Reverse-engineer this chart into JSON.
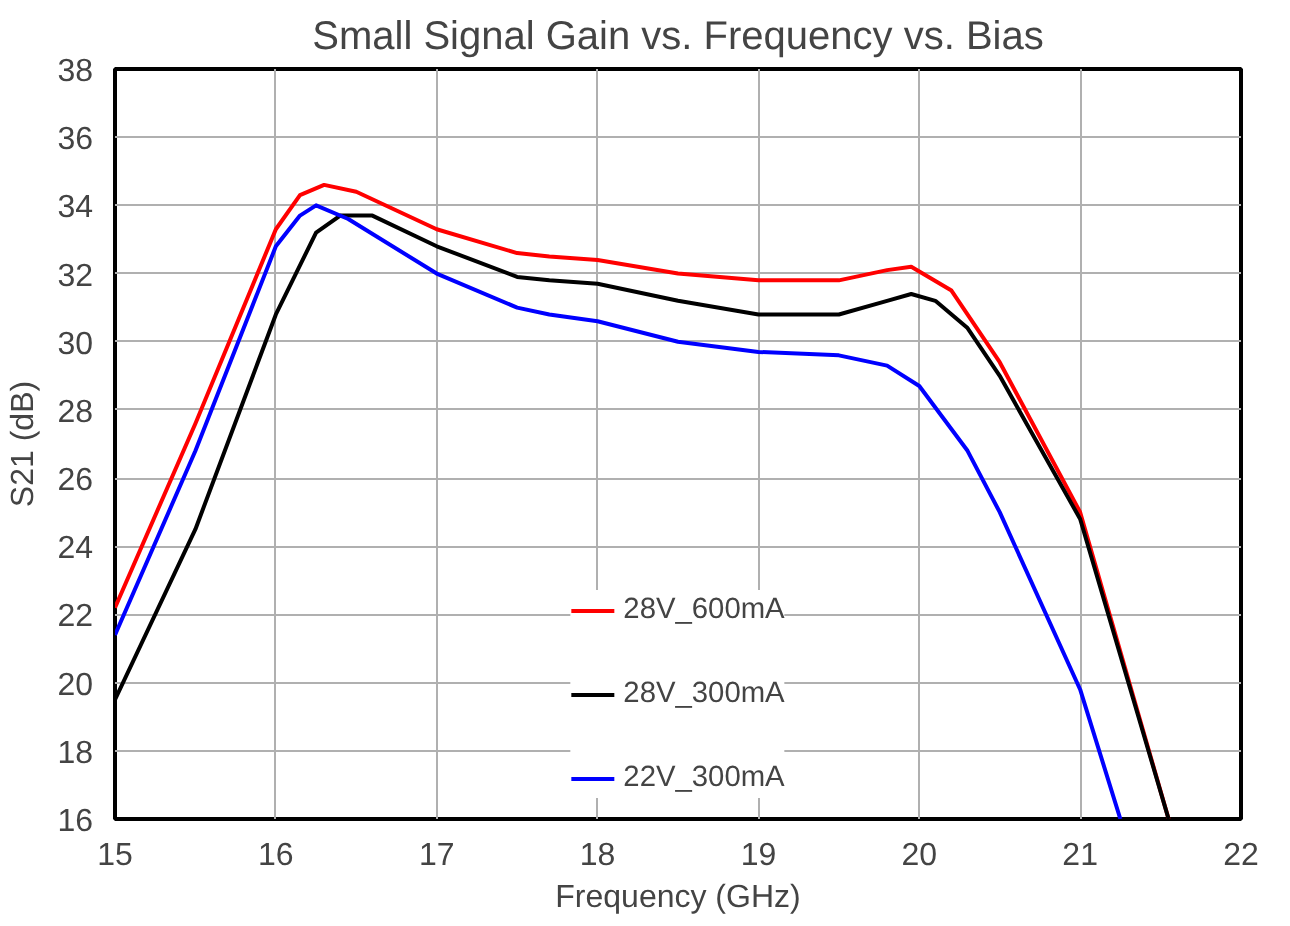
{
  "chart_data": {
    "type": "line",
    "title": "Small Signal Gain vs. Frequency vs. Bias",
    "xlabel": "Frequency (GHz)",
    "ylabel": "S21 (dB)",
    "xlim": [
      15,
      22
    ],
    "xticks": [
      15,
      16,
      17,
      18,
      19,
      20,
      21,
      22
    ],
    "ylim": [
      16,
      38
    ],
    "yticks": [
      16,
      18,
      20,
      22,
      24,
      26,
      28,
      30,
      32,
      34,
      36,
      38
    ],
    "grid": true,
    "legend": "bottom",
    "marker": "none",
    "line_style": "solid",
    "series": [
      {
        "name": "28V_600mA",
        "color": "#ff0000",
        "x": [
          15,
          15.5,
          16,
          16.15,
          16.3,
          16.5,
          17,
          17.5,
          17.7,
          18,
          18.5,
          19,
          19.5,
          19.8,
          19.95,
          20.2,
          20.5,
          21,
          21.55
        ],
        "values": [
          22.2,
          27.6,
          33.3,
          34.3,
          34.6,
          34.4,
          33.3,
          32.6,
          32.5,
          32.4,
          32.0,
          31.8,
          31.8,
          32.1,
          32.2,
          31.5,
          29.4,
          25.0,
          16
        ]
      },
      {
        "name": "28V_300mA",
        "color": "#000000",
        "x": [
          15,
          15.5,
          16,
          16.25,
          16.4,
          16.6,
          17,
          17.5,
          17.7,
          18,
          18.5,
          19,
          19.5,
          19.8,
          19.95,
          20.1,
          20.3,
          20.5,
          21,
          21.55
        ],
        "values": [
          19.5,
          24.5,
          30.8,
          33.2,
          33.7,
          33.7,
          32.8,
          31.9,
          31.8,
          31.7,
          31.2,
          30.8,
          30.8,
          31.2,
          31.4,
          31.2,
          30.4,
          29.0,
          24.8,
          16
        ]
      },
      {
        "name": "22V_300mA",
        "color": "#0000ff",
        "x": [
          15,
          15.5,
          16,
          16.15,
          16.25,
          16.45,
          17,
          17.5,
          17.7,
          18,
          18.5,
          19,
          19.5,
          19.8,
          20,
          20.3,
          20.5,
          21,
          21.25
        ],
        "values": [
          21.4,
          26.8,
          32.8,
          33.7,
          34.0,
          33.6,
          32.0,
          31.0,
          30.8,
          30.6,
          30.0,
          29.7,
          29.6,
          29.3,
          28.7,
          26.8,
          25.0,
          19.8,
          16
        ]
      }
    ]
  }
}
